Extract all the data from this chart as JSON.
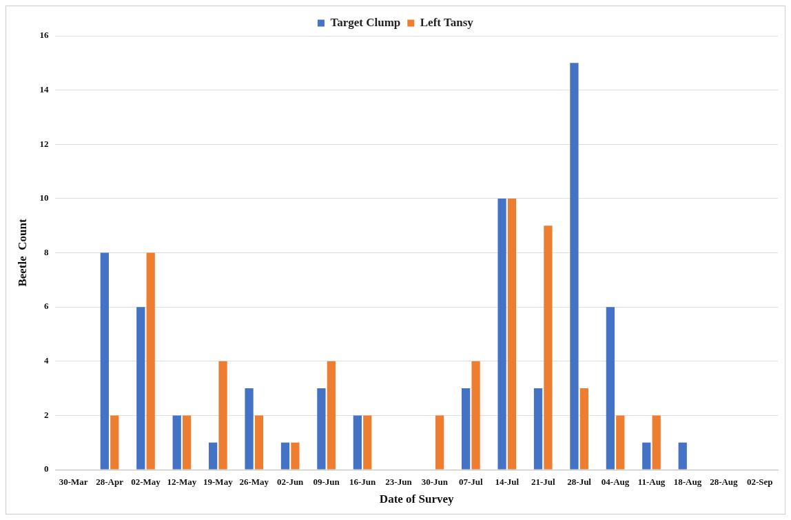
{
  "chart_data": {
    "type": "bar",
    "xlabel": "Date of Survey",
    "ylabel": "Beetle  Count",
    "categories": [
      "30-Mar",
      "28-Apr",
      "02-May",
      "12-May",
      "19-May",
      "26-May",
      "02-Jun",
      "09-Jun",
      "16-Jun",
      "23-Jun",
      "30-Jun",
      "07-Jul",
      "14-Jul",
      "21-Jul",
      "28-Jul",
      "04-Aug",
      "11-Aug",
      "18-Aug",
      "28-Aug",
      "02-Sep"
    ],
    "series": [
      {
        "name": "Target Clump",
        "color": "#4472c4",
        "values": [
          0,
          8,
          6,
          2,
          1,
          3,
          1,
          3,
          2,
          0,
          0,
          3,
          10,
          3,
          15,
          6,
          1,
          1,
          0,
          0
        ]
      },
      {
        "name": "Left Tansy",
        "color": "#ed7d31",
        "values": [
          0,
          2,
          8,
          2,
          4,
          2,
          1,
          4,
          2,
          0,
          2,
          4,
          10,
          9,
          3,
          2,
          2,
          0,
          0,
          0
        ]
      }
    ],
    "ylim": [
      0,
      16
    ],
    "yticks": [
      0,
      2,
      4,
      6,
      8,
      10,
      12,
      14,
      16
    ],
    "grid": "y",
    "legend": "top"
  }
}
